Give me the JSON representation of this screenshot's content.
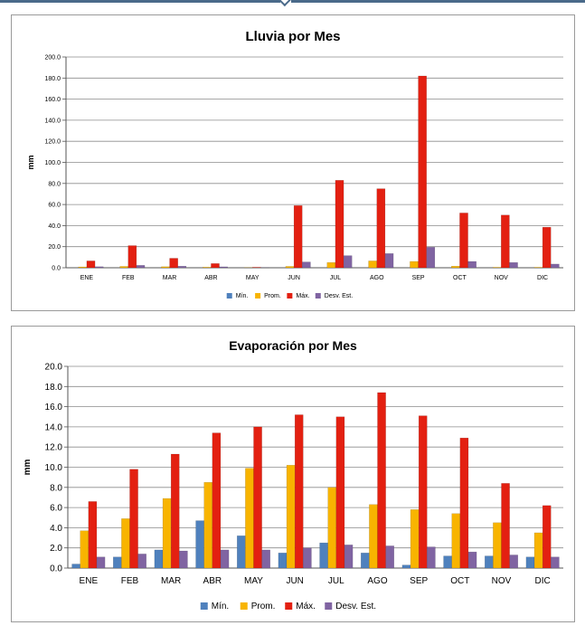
{
  "colors": {
    "min": "#4f81bd",
    "prom": "#f8b400",
    "max": "#e32011",
    "desv": "#8064a2",
    "grid": "#8c8c8c",
    "plot_bg": "#ffffff"
  },
  "chart_data": [
    {
      "type": "bar",
      "title": "Lluvia por Mes",
      "ylabel": "mm",
      "xlabel": "",
      "ylim": [
        0,
        200
      ],
      "yticks": [
        "0.0",
        "20.0",
        "40.0",
        "60.0",
        "80.0",
        "100.0",
        "120.0",
        "140.0",
        "160.0",
        "180.0",
        "200.0"
      ],
      "categories": [
        "ENE",
        "FEB",
        "MAR",
        "ABR",
        "MAY",
        "JUN",
        "JUL",
        "AGO",
        "SEP",
        "OCT",
        "NOV",
        "DIC"
      ],
      "legend_position": "bottom",
      "grid": true,
      "series": [
        {
          "name": "Mín.",
          "color_key": "min",
          "values": [
            0,
            0,
            0,
            0,
            0,
            0,
            0,
            0,
            0,
            0,
            0,
            0
          ]
        },
        {
          "name": "Prom.",
          "color_key": "prom",
          "values": [
            0.8,
            1.3,
            1.0,
            0.6,
            0.2,
            1.3,
            5.0,
            6.5,
            6.0,
            1.5,
            0.5,
            0.5
          ]
        },
        {
          "name": "Máx.",
          "color_key": "max",
          "values": [
            6.5,
            21.0,
            9.0,
            4.0,
            0.5,
            59.0,
            83.0,
            75.0,
            182.0,
            52.0,
            50.0,
            38.5
          ]
        },
        {
          "name": "Desv. Est.",
          "color_key": "desv",
          "values": [
            1.0,
            2.3,
            1.5,
            0.9,
            0.2,
            5.5,
            11.5,
            13.5,
            19.5,
            6.0,
            5.0,
            3.5
          ]
        }
      ]
    },
    {
      "type": "bar",
      "title": "Evaporación por Mes",
      "ylabel": "mm",
      "xlabel": "",
      "ylim": [
        0,
        20
      ],
      "yticks": [
        "0.0",
        "2.0",
        "4.0",
        "6.0",
        "8.0",
        "10.0",
        "12.0",
        "14.0",
        "16.0",
        "18.0",
        "20.0"
      ],
      "categories": [
        "ENE",
        "FEB",
        "MAR",
        "ABR",
        "MAY",
        "JUN",
        "JUL",
        "AGO",
        "SEP",
        "OCT",
        "NOV",
        "DIC"
      ],
      "legend_position": "bottom",
      "grid": true,
      "series": [
        {
          "name": "Mín.",
          "color_key": "min",
          "values": [
            0.4,
            1.1,
            1.8,
            4.7,
            3.2,
            1.5,
            2.5,
            1.5,
            0.3,
            1.2,
            1.2,
            1.1
          ]
        },
        {
          "name": "Prom.",
          "color_key": "prom",
          "values": [
            3.7,
            4.9,
            6.9,
            8.5,
            9.9,
            10.2,
            8.0,
            6.3,
            5.8,
            5.4,
            4.5,
            3.5
          ]
        },
        {
          "name": "Máx.",
          "color_key": "max",
          "values": [
            6.6,
            9.8,
            11.3,
            13.4,
            14.0,
            15.2,
            15.0,
            17.4,
            15.1,
            12.9,
            8.4,
            6.2
          ]
        },
        {
          "name": "Desv. Est.",
          "color_key": "desv",
          "values": [
            1.1,
            1.4,
            1.7,
            1.8,
            1.8,
            2.0,
            2.3,
            2.2,
            2.1,
            1.6,
            1.3,
            1.1
          ]
        }
      ]
    }
  ]
}
